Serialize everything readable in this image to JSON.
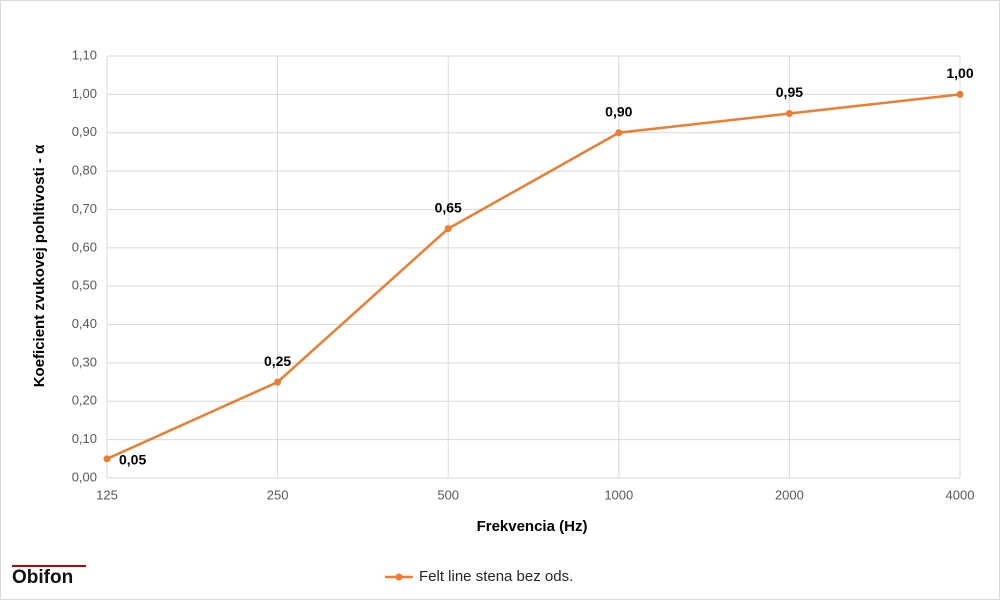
{
  "chart_data": {
    "type": "line",
    "x_label": "Frekvencia (Hz)",
    "y_label": "Koeficient zvukovej pohltivosti - α",
    "categories": [
      "125",
      "250",
      "500",
      "1000",
      "2000",
      "4000"
    ],
    "series": [
      {
        "name": "Felt line stena bez ods.",
        "color": "#ed7d31",
        "values": [
          0.05,
          0.25,
          0.65,
          0.9,
          0.95,
          1.0
        ],
        "value_labels": [
          "0,05",
          "0,25",
          "0,65",
          "0,90",
          "0,95",
          "1,00"
        ]
      }
    ],
    "ylim": [
      0,
      1.1
    ],
    "yticks": [
      {
        "value": 0,
        "label": "0,00"
      },
      {
        "value": 0.1,
        "label": "0,10"
      },
      {
        "value": 0.2,
        "label": "0,20"
      },
      {
        "value": 0.3,
        "label": "0,30"
      },
      {
        "value": 0.4,
        "label": "0,40"
      },
      {
        "value": 0.5,
        "label": "0,50"
      },
      {
        "value": 0.6,
        "label": "0,60"
      },
      {
        "value": 0.7,
        "label": "0,70"
      },
      {
        "value": 0.8,
        "label": "0,80"
      },
      {
        "value": 0.9,
        "label": "0,90"
      },
      {
        "value": 1.0,
        "label": "1,00"
      },
      {
        "value": 1.1,
        "label": "1,10"
      }
    ],
    "grid": true,
    "legend": "bottom"
  },
  "logo": "Obifon"
}
